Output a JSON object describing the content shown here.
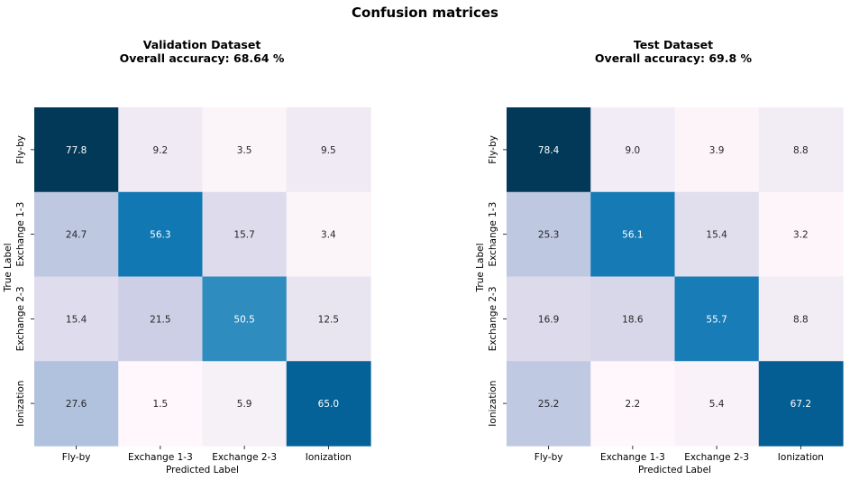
{
  "suptitle": "Confusion matrices",
  "chart_data": [
    {
      "type": "heatmap",
      "title_line1": "Validation Dataset",
      "title_line2": "Overall accuracy: 68.64 %",
      "xlabel": "Predicted Label",
      "ylabel": "True Label",
      "x_categories": [
        "Fly-by",
        "Exchange 1-3",
        "Exchange 2-3",
        "Ionization"
      ],
      "y_categories": [
        "Fly-by",
        "Exchange 1-3",
        "Exchange 2-3",
        "Ionization"
      ],
      "values": [
        [
          77.8,
          9.2,
          3.5,
          9.5
        ],
        [
          24.7,
          56.3,
          15.7,
          3.4
        ],
        [
          15.4,
          21.5,
          50.5,
          12.5
        ],
        [
          27.6,
          1.5,
          5.9,
          65.0
        ]
      ],
      "colormap": "PuBu",
      "colorbar": false
    },
    {
      "type": "heatmap",
      "title_line1": "Test Dataset",
      "title_line2": "Overall accuracy: 69.8 %",
      "xlabel": "Predicted Label",
      "ylabel": "True Label",
      "x_categories": [
        "Fly-by",
        "Exchange 1-3",
        "Exchange 2-3",
        "Ionization"
      ],
      "y_categories": [
        "Fly-by",
        "Exchange 1-3",
        "Exchange 2-3",
        "Ionization"
      ],
      "values": [
        [
          78.4,
          9.0,
          3.9,
          8.8
        ],
        [
          25.3,
          56.1,
          15.4,
          3.2
        ],
        [
          16.9,
          18.6,
          55.7,
          8.8
        ],
        [
          25.2,
          2.2,
          5.4,
          67.2
        ]
      ],
      "colormap": "PuBu",
      "colorbar": false
    }
  ]
}
